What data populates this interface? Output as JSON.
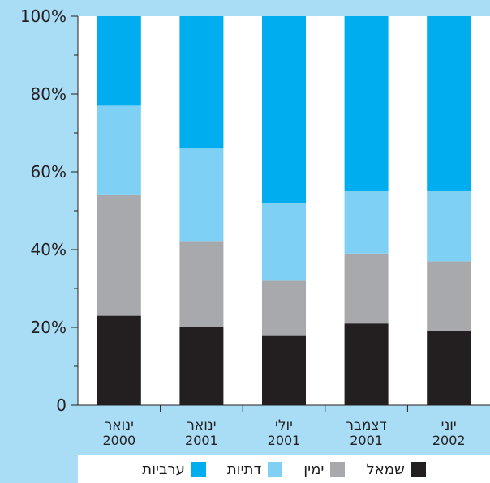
{
  "colors": {
    "background": "#a9dcf5",
    "plot_area": "#ffffff",
    "שמאל": "#231f20",
    "ימין": "#a7a9ac",
    "דתיות": "#7fd0f5",
    "ערביות": "#00aeef"
  },
  "chart_data": {
    "type": "bar",
    "stacked": true,
    "categories": [
      "ינואר 2000",
      "ינואר 2001",
      "יולי 2001",
      "דצמבר 2001",
      "יוני 2002"
    ],
    "series": [
      {
        "name": "שמאל",
        "values": [
          23,
          20,
          18,
          21,
          19
        ]
      },
      {
        "name": "ימין",
        "values": [
          31,
          22,
          14,
          18,
          18
        ]
      },
      {
        "name": "דתיות",
        "values": [
          23,
          24,
          20,
          16,
          18
        ]
      },
      {
        "name": "ערביות",
        "values": [
          23,
          34,
          48,
          45,
          45
        ]
      }
    ],
    "y_tick_labels": [
      "0",
      "20%",
      "40%",
      "60%",
      "80%",
      "100%"
    ],
    "y_ticks": [
      0,
      20,
      40,
      60,
      80,
      100
    ],
    "ylim": [
      0,
      100
    ],
    "legend": [
      "שמאל",
      "ימין",
      "דתיות",
      "ערביות"
    ],
    "legend_position": "bottom",
    "grid": false
  }
}
